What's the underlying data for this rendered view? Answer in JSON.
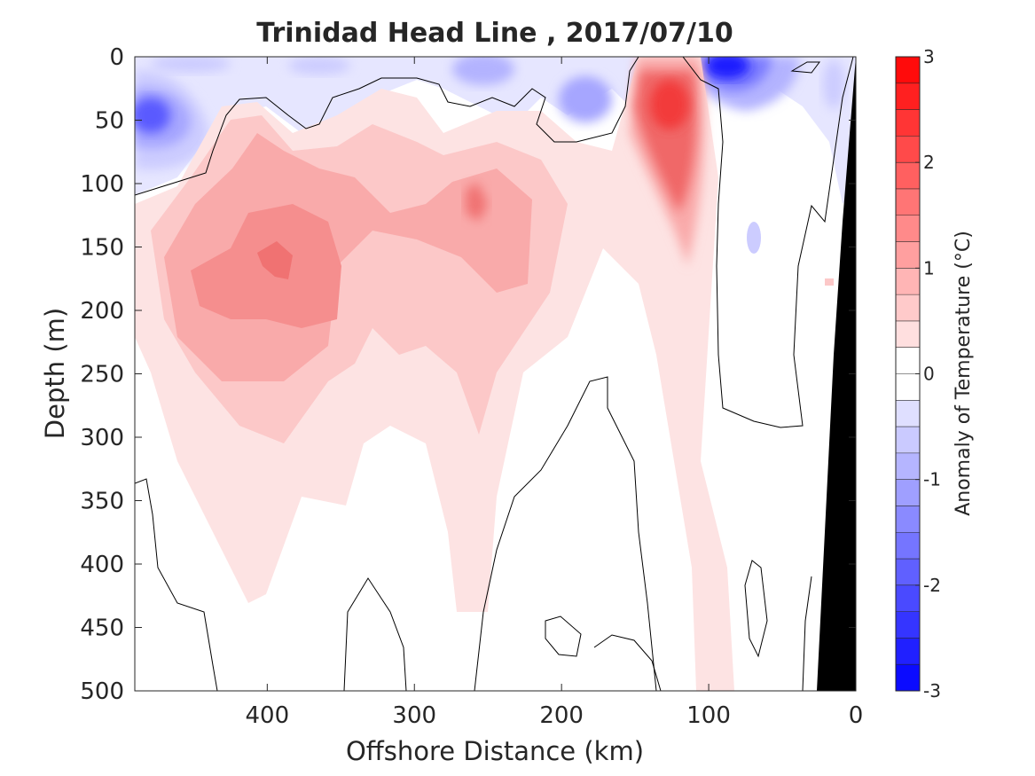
{
  "chart_data": {
    "type": "heatmap",
    "title": "Trinidad Head Line , 2017/07/10",
    "xlabel": "Offshore Distance (km)",
    "ylabel": "Depth (m)",
    "x_range": [
      490,
      0
    ],
    "x_reversed": true,
    "y_range": [
      0,
      500
    ],
    "y_reversed": true,
    "x_ticks": [
      400,
      300,
      200,
      100,
      0
    ],
    "y_ticks": [
      0,
      50,
      100,
      150,
      200,
      250,
      300,
      350,
      400,
      450,
      500
    ],
    "colorbar": {
      "label": "Anomaly of Temperature (°C)",
      "range": [
        -3,
        3
      ],
      "ticks": [
        3,
        2,
        1,
        0,
        -1,
        -2,
        -3
      ],
      "levels": 24,
      "colors": {
        "negative": "#0000ff",
        "zero": "#ffffff",
        "positive": "#ff0000"
      }
    },
    "contour_level": 0,
    "bathymetry_color": "#000000",
    "anomaly_features": [
      {
        "name": "warm_core_main",
        "x": 390,
        "y": 155,
        "value": 1.3
      },
      {
        "name": "warm_core_secondary",
        "x": 260,
        "y": 115,
        "value": 1.2
      },
      {
        "name": "warm_jet_near_shore",
        "x": 125,
        "y": 40,
        "value": 2.3
      },
      {
        "name": "cold_surface_near_shore",
        "x": 90,
        "y": 5,
        "value": -2.3
      },
      {
        "name": "cold_surface_offshore",
        "x": 480,
        "y": 45,
        "value": -1.8
      },
      {
        "name": "cold_patch_180km",
        "x": 185,
        "y": 30,
        "value": -0.9
      },
      {
        "name": "cold_patch_260km",
        "x": 260,
        "y": 10,
        "value": -0.8
      }
    ]
  }
}
